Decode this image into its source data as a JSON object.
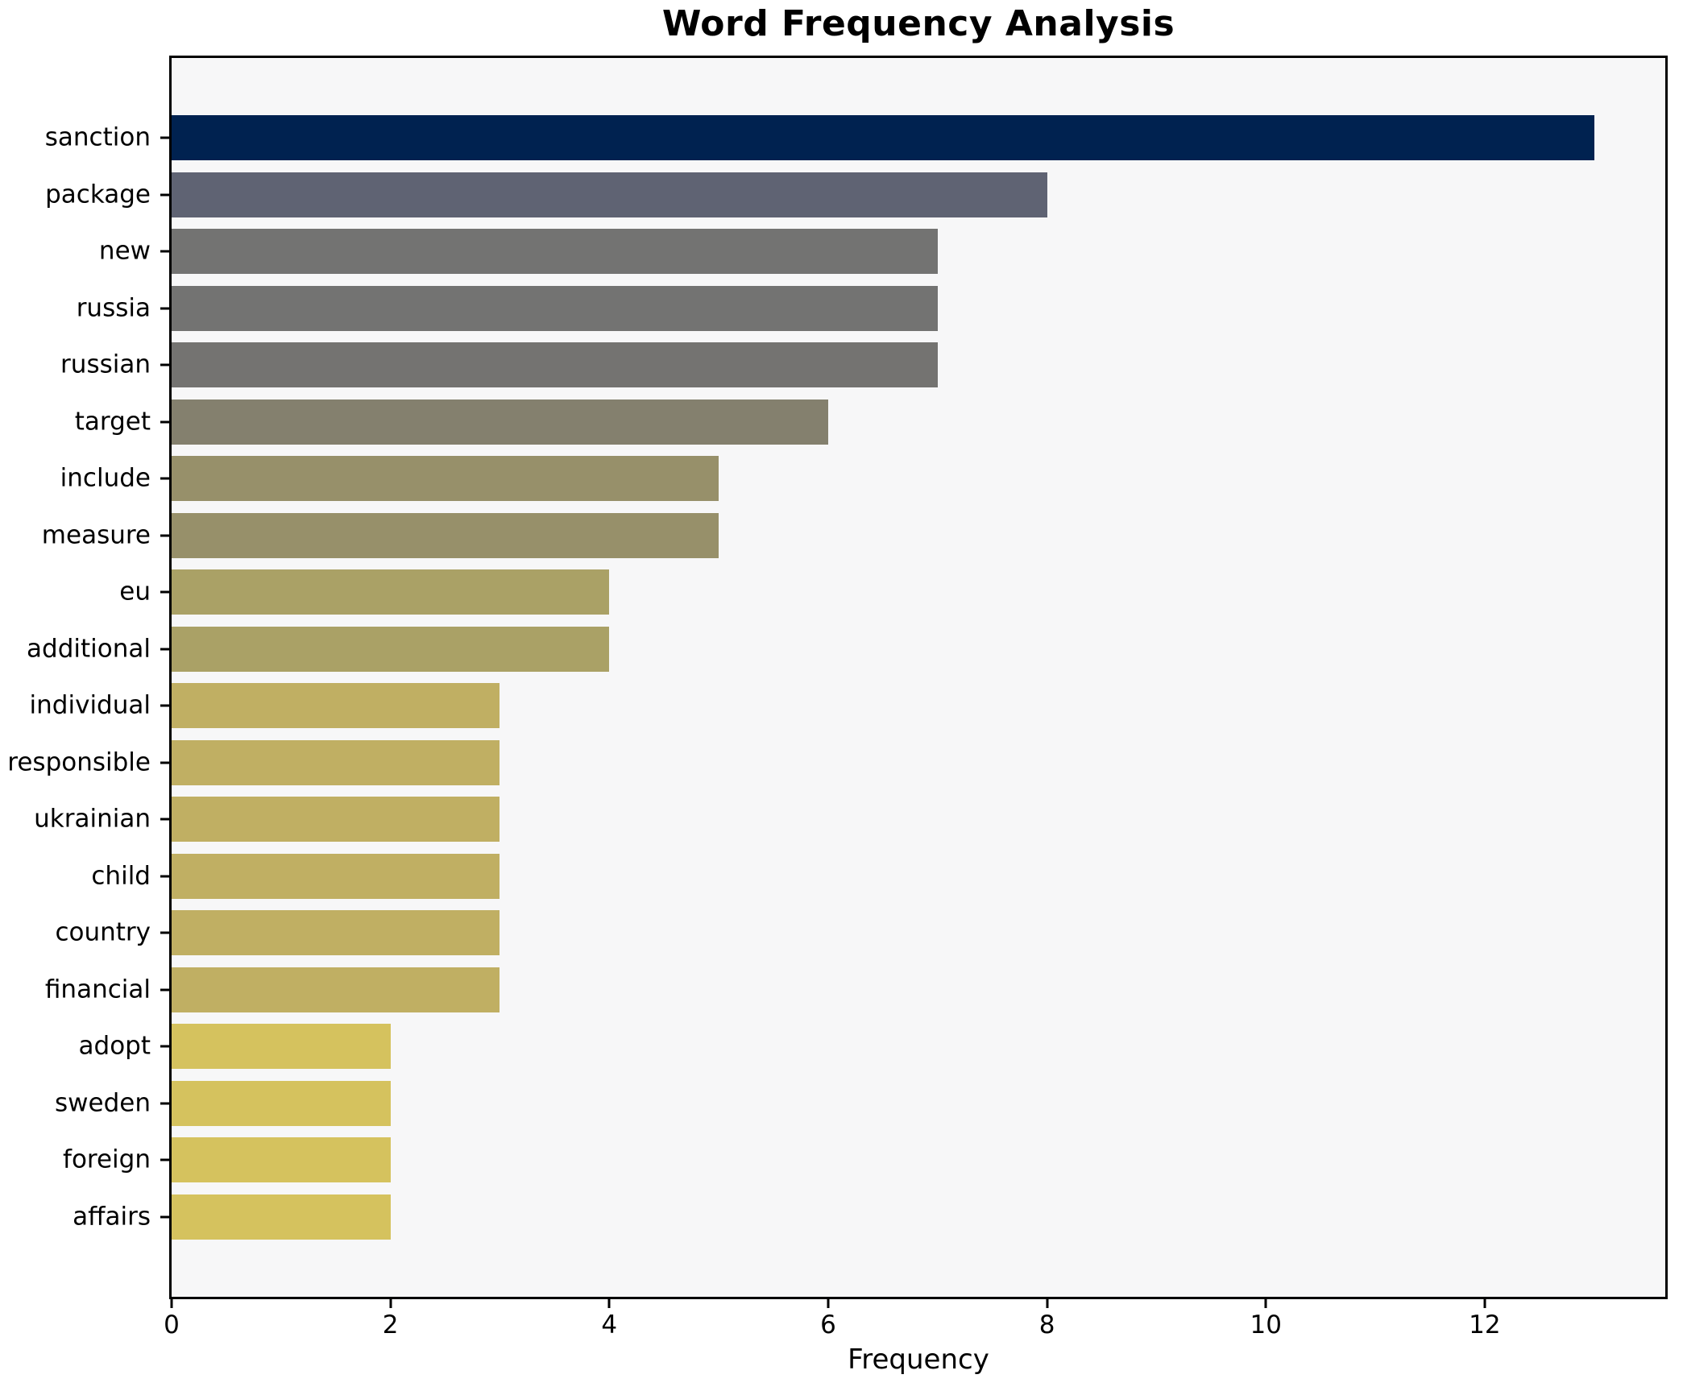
{
  "title": "Word Frequency Analysis",
  "chart_data": {
    "type": "bar",
    "orientation": "horizontal",
    "title": "Word Frequency Analysis",
    "xlabel": "Frequency",
    "ylabel": "",
    "xlim": [
      0,
      13.65
    ],
    "xticks": [
      0,
      2,
      4,
      6,
      8,
      10,
      12
    ],
    "grid": false,
    "legend": "none",
    "categories": [
      "sanction",
      "package",
      "new",
      "russia",
      "russian",
      "target",
      "include",
      "measure",
      "eu",
      "additional",
      "individual",
      "responsible",
      "ukrainian",
      "child",
      "country",
      "financial",
      "adopt",
      "sweden",
      "foreign",
      "affairs"
    ],
    "values": [
      13,
      8,
      7,
      7,
      7,
      6,
      5,
      5,
      4,
      4,
      3,
      3,
      3,
      3,
      3,
      3,
      2,
      2,
      2,
      2
    ],
    "bar_colors": [
      "#002250",
      "#5f6373",
      "#737372",
      "#737372",
      "#747371",
      "#84806e",
      "#97906a",
      "#97906a",
      "#aaa166",
      "#aaa166",
      "#c0af63",
      "#c0af63",
      "#c0af63",
      "#c0af63",
      "#c0af63",
      "#c0af63",
      "#d5c25e",
      "#d5c25e",
      "#d5c25e",
      "#d5c25e"
    ],
    "colors": {
      "figure_bg": "#ffffff",
      "plot_bg": "#f7f7f8",
      "spine": "#000000",
      "text": "#000000"
    }
  }
}
